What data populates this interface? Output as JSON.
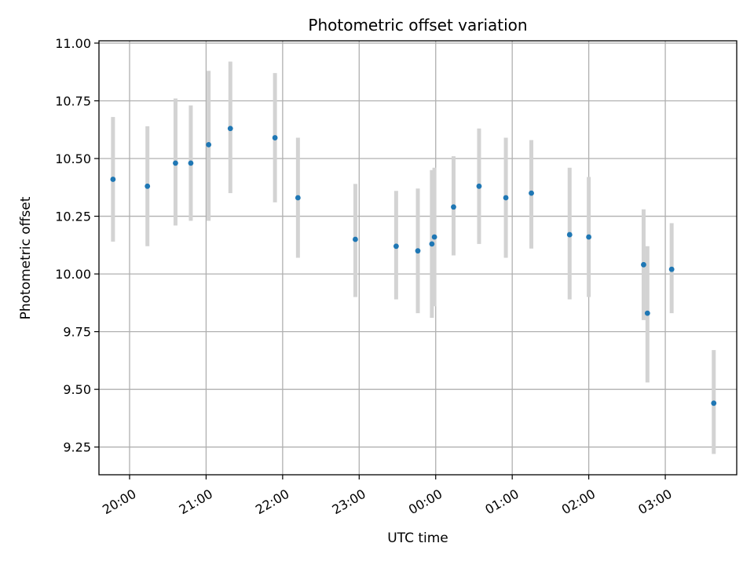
{
  "chart_data": {
    "type": "scatter",
    "title": "Photometric offset variation",
    "xlabel": "UTC time",
    "ylabel": "Photometric offset",
    "grid": true,
    "colors": {
      "point": "#1f77b4",
      "errorbar": "#d3d3d3",
      "grid": "#b0b0b0"
    },
    "x_axis": {
      "type": "time",
      "min": "19:36",
      "max": "03:56",
      "ticks": [
        "20:00",
        "21:00",
        "22:00",
        "23:00",
        "00:00",
        "01:00",
        "02:00",
        "03:00"
      ]
    },
    "y_axis": {
      "min": 9.13,
      "max": 11.01,
      "ticks": [
        "9.25",
        "9.50",
        "9.75",
        "10.00",
        "10.25",
        "10.50",
        "10.75",
        "11.00"
      ]
    },
    "points": [
      {
        "x": "19:47",
        "y": 10.41,
        "yerr_low": 10.14,
        "yerr_high": 10.68
      },
      {
        "x": "20:14",
        "y": 10.38,
        "yerr_low": 10.12,
        "yerr_high": 10.64
      },
      {
        "x": "20:36",
        "y": 10.48,
        "yerr_low": 10.21,
        "yerr_high": 10.76
      },
      {
        "x": "20:48",
        "y": 10.48,
        "yerr_low": 10.23,
        "yerr_high": 10.73
      },
      {
        "x": "21:02",
        "y": 10.56,
        "yerr_low": 10.23,
        "yerr_high": 10.88
      },
      {
        "x": "21:19",
        "y": 10.63,
        "yerr_low": 10.35,
        "yerr_high": 10.92
      },
      {
        "x": "21:54",
        "y": 10.59,
        "yerr_low": 10.31,
        "yerr_high": 10.87
      },
      {
        "x": "22:12",
        "y": 10.33,
        "yerr_low": 10.07,
        "yerr_high": 10.59
      },
      {
        "x": "22:57",
        "y": 10.15,
        "yerr_low": 9.9,
        "yerr_high": 10.39
      },
      {
        "x": "23:29",
        "y": 10.12,
        "yerr_low": 9.89,
        "yerr_high": 10.36
      },
      {
        "x": "23:46",
        "y": 10.1,
        "yerr_low": 9.83,
        "yerr_high": 10.37
      },
      {
        "x": "23:57",
        "y": 10.13,
        "yerr_low": 9.81,
        "yerr_high": 10.45
      },
      {
        "x": "23:59",
        "y": 10.16,
        "yerr_low": 9.86,
        "yerr_high": 10.46
      },
      {
        "x": "00:14",
        "y": 10.29,
        "yerr_low": 10.08,
        "yerr_high": 10.51
      },
      {
        "x": "00:34",
        "y": 10.38,
        "yerr_low": 10.13,
        "yerr_high": 10.63
      },
      {
        "x": "00:55",
        "y": 10.33,
        "yerr_low": 10.07,
        "yerr_high": 10.59
      },
      {
        "x": "01:15",
        "y": 10.35,
        "yerr_low": 10.11,
        "yerr_high": 10.58
      },
      {
        "x": "01:45",
        "y": 10.17,
        "yerr_low": 9.89,
        "yerr_high": 10.46
      },
      {
        "x": "02:00",
        "y": 10.16,
        "yerr_low": 9.9,
        "yerr_high": 10.42
      },
      {
        "x": "02:43",
        "y": 10.04,
        "yerr_low": 9.8,
        "yerr_high": 10.28
      },
      {
        "x": "02:46",
        "y": 9.83,
        "yerr_low": 9.53,
        "yerr_high": 10.12
      },
      {
        "x": "03:05",
        "y": 10.02,
        "yerr_low": 9.83,
        "yerr_high": 10.22
      },
      {
        "x": "03:38",
        "y": 9.44,
        "yerr_low": 9.22,
        "yerr_high": 9.67
      }
    ]
  }
}
